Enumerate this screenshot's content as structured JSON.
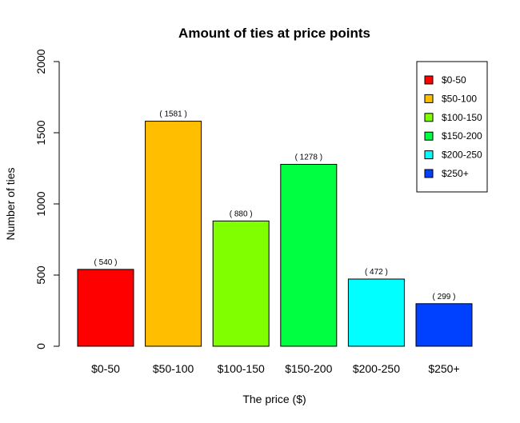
{
  "chart_data": {
    "type": "bar",
    "title": "Amount of ties at price points",
    "xlabel": "The price ($)",
    "ylabel": "Number of ties",
    "categories": [
      "$0-50",
      "$50-100",
      "$100-150",
      "$150-200",
      "$200-250",
      "$250+"
    ],
    "values": [
      540,
      1581,
      880,
      1278,
      472,
      299
    ],
    "data_labels": [
      "( 540 )",
      "( 1581 )",
      "( 880 )",
      "( 1278 )",
      "( 472 )",
      "( 299 )"
    ],
    "colors": [
      "#FF0000",
      "#FFBF00",
      "#80FF00",
      "#00FF40",
      "#00FFFF",
      "#0040FF"
    ],
    "ylim": [
      0,
      2000
    ],
    "yticks": [
      0,
      500,
      1000,
      1500,
      2000
    ],
    "grid": false,
    "legend": {
      "position": "top-right",
      "entries": [
        "$0-50",
        "$50-100",
        "$100-150",
        "$150-200",
        "$200-250",
        "$250+"
      ]
    }
  }
}
